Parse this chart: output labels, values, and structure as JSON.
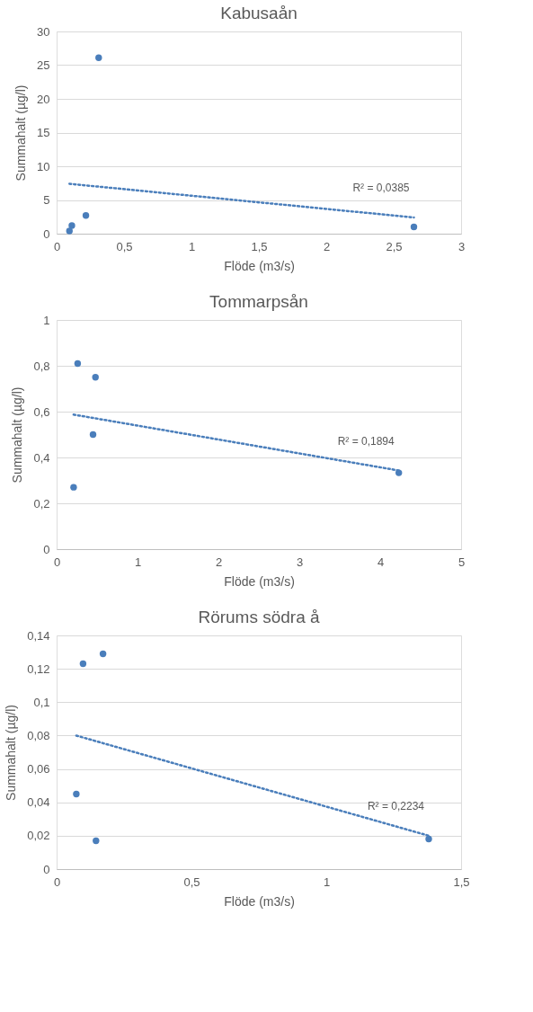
{
  "chart_data": [
    {
      "type": "scatter",
      "title": "Kabusaån",
      "xlabel": "Flöde (m3/s)",
      "ylabel": "Summahalt (µg/l)",
      "xlim": [
        0,
        3
      ],
      "ylim": [
        0,
        30
      ],
      "xticks": [
        0,
        {
          "value": 0.5,
          "label": "0,5"
        },
        1,
        {
          "value": 1.5,
          "label": "1,5"
        },
        2,
        {
          "value": 2.5,
          "label": "2,5"
        },
        3
      ],
      "yticks": [
        0,
        5,
        10,
        15,
        20,
        25,
        30
      ],
      "grid": "y",
      "series": [
        {
          "color": "#4a7ebb",
          "marker": "circle",
          "x": [
            0.095,
            0.113,
            0.217,
            0.312,
            2.65
          ],
          "values": [
            0.4,
            1.2,
            2.7,
            26.1,
            1.0
          ]
        },
        {
          "type": "line",
          "color": "#4a7ebb",
          "line_style": "dotted",
          "x": [
            0.095,
            2.65
          ],
          "values": [
            7.4,
            2.4
          ]
        }
      ],
      "annotations": [
        "R² = 0,0385"
      ]
    },
    {
      "type": "scatter",
      "title": "Tommarpsån",
      "xlabel": "Flöde (m3/s)",
      "ylabel": "Summahalt (µg/l)",
      "xlim": [
        0,
        5
      ],
      "ylim": [
        0,
        1
      ],
      "xticks": [
        0,
        1,
        2,
        3,
        4,
        5
      ],
      "yticks": [
        0,
        {
          "value": 0.2,
          "label": "0,2"
        },
        {
          "value": 0.4,
          "label": "0,4"
        },
        {
          "value": 0.6,
          "label": "0,6"
        },
        {
          "value": 0.8,
          "label": "0,8"
        },
        1
      ],
      "grid": "y",
      "series": [
        {
          "color": "#4a7ebb",
          "marker": "circle",
          "x": [
            0.21,
            0.26,
            0.48,
            0.45,
            4.23
          ],
          "values": [
            0.27,
            0.81,
            0.75,
            0.5,
            0.333
          ]
        },
        {
          "type": "line",
          "color": "#4a7ebb",
          "line_style": "dotted",
          "x": [
            0.21,
            4.23
          ],
          "values": [
            0.587,
            0.343
          ]
        }
      ],
      "annotations": [
        "R² = 0,1894"
      ]
    },
    {
      "type": "scatter",
      "title": "Rörums södra å",
      "xlabel": "Flöde (m3/s)",
      "ylabel": "Summahalt (µg/l)",
      "xlim": [
        0,
        1.5
      ],
      "ylim": [
        0,
        0.14
      ],
      "xticks": [
        0,
        {
          "value": 0.5,
          "label": "0,5"
        },
        1,
        {
          "value": 1.5,
          "label": "1,5"
        }
      ],
      "yticks": [
        0,
        {
          "value": 0.02,
          "label": "0,02"
        },
        {
          "value": 0.04,
          "label": "0,04"
        },
        {
          "value": 0.06,
          "label": "0,06"
        },
        {
          "value": 0.08,
          "label": "0,08"
        },
        {
          "value": 0.1,
          "label": "0,1"
        },
        {
          "value": 0.12,
          "label": "0,12"
        },
        {
          "value": 0.14,
          "label": "0,14"
        }
      ],
      "grid": "y",
      "series": [
        {
          "color": "#4a7ebb",
          "marker": "circle",
          "x": [
            0.073,
            0.098,
            0.172,
            0.146,
            1.38
          ],
          "values": [
            0.045,
            0.123,
            0.129,
            0.017,
            0.018
          ]
        },
        {
          "type": "line",
          "color": "#4a7ebb",
          "line_style": "dotted",
          "x": [
            0.073,
            1.38
          ],
          "values": [
            0.08,
            0.02
          ]
        }
      ],
      "annotations": [
        "R² = 0,2234"
      ]
    }
  ]
}
